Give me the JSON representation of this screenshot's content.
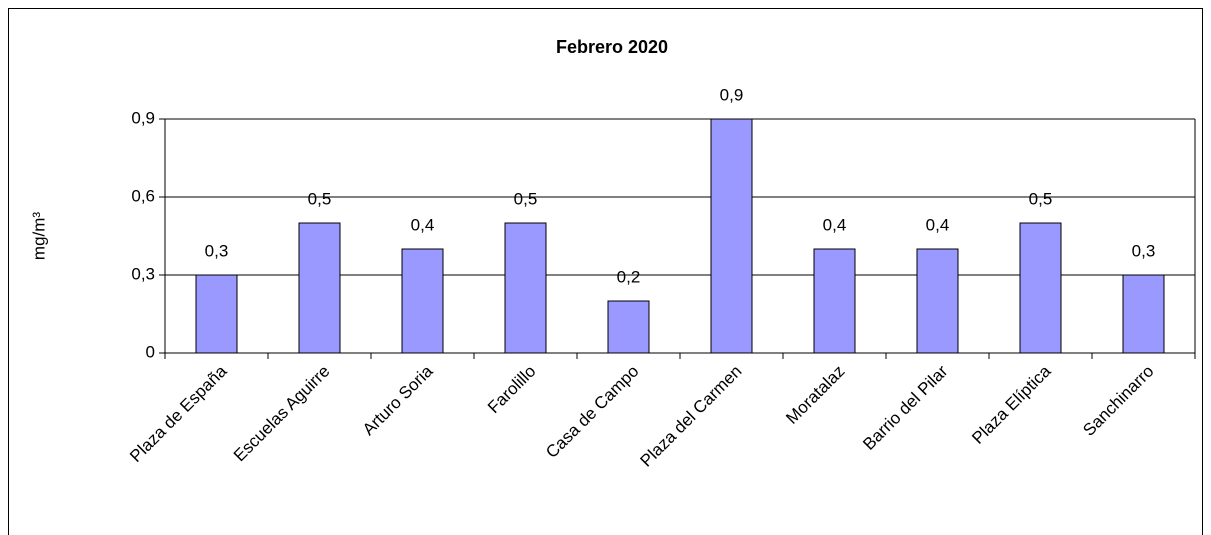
{
  "chart_data": {
    "type": "bar",
    "title": "Febrero 2020",
    "y_label": "mg/m³",
    "categories": [
      "Plaza de España",
      "Escuelas Aguirre",
      "Arturo Soria",
      "Farolillo",
      "Casa de Campo",
      "Plaza del Carmen",
      "Moratalaz",
      "Barrio del Pilar",
      "Plaza Elíptica",
      "Sanchinarro"
    ],
    "values": [
      0.3,
      0.5,
      0.4,
      0.5,
      0.2,
      0.9,
      0.4,
      0.4,
      0.5,
      0.3
    ],
    "value_labels": [
      "0,3",
      "0,5",
      "0,4",
      "0,5",
      "0,2",
      "0,9",
      "0,4",
      "0,4",
      "0,5",
      "0,3"
    ],
    "color": "#9999ff",
    "ylim": [
      0,
      0.9
    ],
    "yticks": [
      0,
      {
        "value": 0.3,
        "label": "0,3"
      },
      {
        "value": 0.6,
        "label": "0,6"
      },
      {
        "value": 0.9,
        "label": "0,9"
      }
    ],
    "grid": true
  }
}
